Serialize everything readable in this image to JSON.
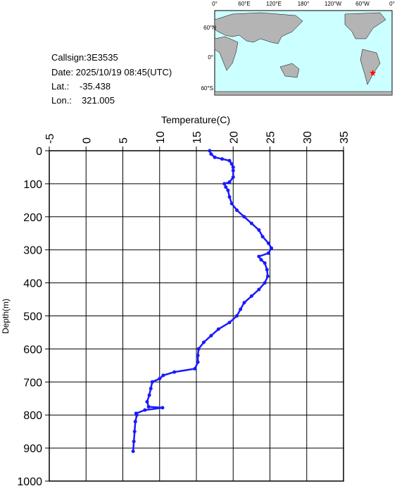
{
  "info": {
    "callsign": "Callsign:3E3535",
    "date": "Date:  2025/10/19 08:45(UTC)",
    "lat": {
      "label": "Lat.:",
      "value": -35.438
    },
    "lon": {
      "label": "Lon.:",
      "value": 321.005
    }
  },
  "map": {
    "lon_labels": [
      "0°",
      "60°E",
      "120°E",
      "180°",
      "120°W",
      "60°W",
      "0°"
    ],
    "lat_labels": [
      "60°N",
      "0°",
      "60°S"
    ]
  },
  "chart_data": {
    "type": "profile",
    "x_label": "Temperature(C)",
    "y_label": "Depth(m)",
    "xlim": [
      -5,
      35
    ],
    "xticks": [
      -5,
      0,
      5,
      10,
      15,
      20,
      25,
      30,
      35
    ],
    "ylim": [
      0,
      1000
    ],
    "yticks": [
      0,
      100,
      200,
      300,
      400,
      500,
      600,
      700,
      800,
      900,
      1000
    ],
    "y_inverted": true,
    "grid": true,
    "color": "#1a1aff",
    "depth": [
      0,
      10,
      20,
      25,
      30,
      40,
      50,
      60,
      80,
      95,
      100,
      110,
      120,
      140,
      160,
      180,
      200,
      220,
      240,
      260,
      280,
      295,
      310,
      320,
      330,
      340,
      360,
      380,
      400,
      420,
      440,
      460,
      480,
      500,
      520,
      540,
      560,
      580,
      600,
      620,
      640,
      660,
      670,
      680,
      690,
      700,
      720,
      740,
      760,
      775,
      778,
      785,
      795,
      800,
      820,
      850,
      880,
      910
    ],
    "values": [
      16.8,
      17.0,
      17.5,
      18.5,
      19.5,
      19.8,
      20.0,
      20.0,
      20.0,
      19.5,
      18.8,
      19.0,
      19.3,
      19.5,
      19.8,
      20.5,
      21.5,
      22.5,
      23.5,
      24.0,
      24.8,
      25.2,
      24.8,
      23.5,
      23.8,
      24.3,
      24.6,
      24.7,
      24.3,
      23.5,
      22.5,
      21.5,
      21.0,
      20.5,
      19.5,
      18.0,
      17.0,
      16.0,
      15.3,
      15.2,
      15.2,
      14.8,
      12.0,
      10.5,
      10.0,
      9.0,
      8.8,
      8.6,
      8.3,
      8.5,
      10.4,
      8.0,
      6.8,
      6.9,
      6.7,
      6.6,
      6.5,
      6.4
    ]
  }
}
